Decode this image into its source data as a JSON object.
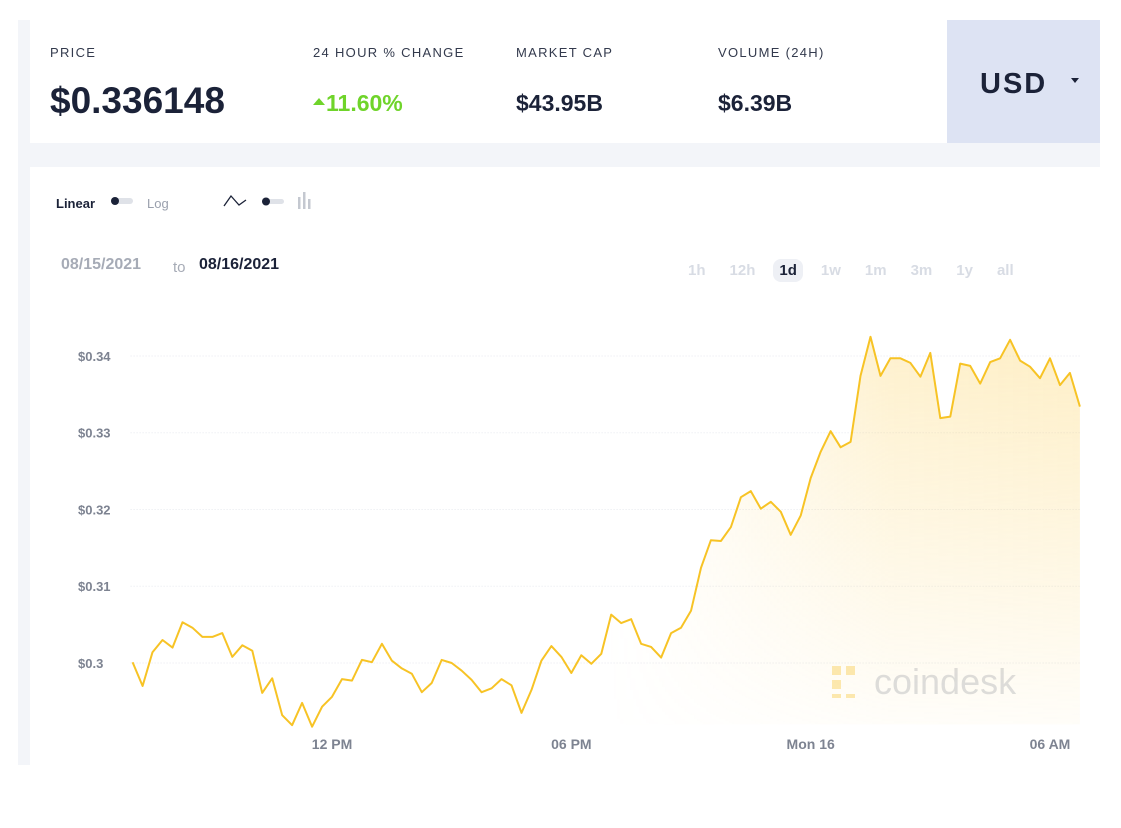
{
  "header": {
    "stats": [
      {
        "label": "PRICE",
        "value": "$0.336148"
      },
      {
        "label": "24 HOUR % CHANGE",
        "value": "11.60%"
      },
      {
        "label": "MARKET CAP",
        "value": "$43.95B"
      },
      {
        "label": "VOLUME (24H)",
        "value": "$6.39B"
      }
    ],
    "currency": "USD"
  },
  "controls": {
    "scale": [
      "Linear",
      "Log"
    ]
  },
  "range": {
    "from": "08/15/2021",
    "to_word": "to",
    "to": "08/16/2021",
    "buttons": [
      "1h",
      "12h",
      "1d",
      "1w",
      "1m",
      "3m",
      "1y",
      "all"
    ],
    "selected": 2
  },
  "watermark": "coindesk",
  "chart_data": {
    "type": "line",
    "color": "#f7c325",
    "x": [
      7,
      7.25,
      7.5,
      7.75,
      8,
      8.25,
      8.5,
      8.75,
      9,
      9.25,
      9.5,
      9.75,
      10,
      10.25,
      10.5,
      10.75,
      11,
      11.25,
      11.5,
      11.75,
      12,
      12.25,
      12.5,
      12.75,
      13,
      13.25,
      13.5,
      13.75,
      14,
      14.25,
      14.5,
      14.75,
      15,
      15.25,
      15.5,
      15.75,
      16,
      16.25,
      16.5,
      16.75,
      17,
      17.25,
      17.5,
      17.75,
      18,
      18.25,
      18.5,
      18.75,
      19,
      19.25,
      19.5,
      19.75,
      20,
      20.25,
      20.5,
      20.75,
      21,
      21.25,
      21.5,
      21.75,
      22,
      22.25,
      22.5,
      22.75,
      23,
      23.25,
      23.5,
      23.75,
      24,
      24.25,
      24.5,
      24.75,
      25,
      25.25,
      25.5,
      25.75,
      26,
      26.25,
      26.5,
      26.75,
      27,
      27.25,
      27.5,
      27.75,
      28,
      28.25,
      28.5,
      28.75,
      29,
      29.25,
      29.5,
      29.75,
      30,
      30.25,
      30.5,
      30.75
    ],
    "values": [
      0.3001,
      0.297,
      0.3014,
      0.303,
      0.302,
      0.3053,
      0.3046,
      0.3034,
      0.3034,
      0.3039,
      0.3008,
      0.3023,
      0.3016,
      0.2961,
      0.298,
      0.2932,
      0.2919,
      0.2948,
      0.2917,
      0.2943,
      0.2956,
      0.2979,
      0.2977,
      0.3004,
      0.3001,
      0.3025,
      0.3003,
      0.2993,
      0.2986,
      0.2962,
      0.2974,
      0.3004,
      0.3,
      0.299,
      0.2978,
      0.2962,
      0.2967,
      0.2979,
      0.2971,
      0.2935,
      0.2965,
      0.3003,
      0.3022,
      0.3008,
      0.2987,
      0.301,
      0.2999,
      0.3012,
      0.3063,
      0.3052,
      0.3057,
      0.3025,
      0.3021,
      0.3007,
      0.3039,
      0.3046,
      0.3068,
      0.3124,
      0.316,
      0.3159,
      0.3177,
      0.3216,
      0.3224,
      0.3201,
      0.321,
      0.3197,
      0.3167,
      0.3192,
      0.3241,
      0.3275,
      0.3302,
      0.3281,
      0.3288,
      0.3374,
      0.3425,
      0.3374,
      0.3397,
      0.3397,
      0.3391,
      0.3373,
      0.3404,
      0.3319,
      0.3321,
      0.339,
      0.3387,
      0.3364,
      0.3392,
      0.3397,
      0.3421,
      0.3394,
      0.3386,
      0.3371,
      0.3397,
      0.3362,
      0.3378,
      0.3334
    ],
    "xlim": [
      6.95,
      30.75
    ],
    "xticks": [
      {
        "value": 12,
        "label": "12 PM"
      },
      {
        "value": 18,
        "label": "06 PM"
      },
      {
        "value": 24,
        "label": "Mon 16"
      },
      {
        "value": 30,
        "label": "06 AM"
      }
    ],
    "ylim": [
      0.292,
      0.3435
    ],
    "yticks": [
      {
        "value": 0.3,
        "label": "$0.3"
      },
      {
        "value": 0.31,
        "label": "$0.31"
      },
      {
        "value": 0.32,
        "label": "$0.32"
      },
      {
        "value": 0.33,
        "label": "$0.33"
      },
      {
        "value": 0.34,
        "label": "$0.34"
      }
    ],
    "grid": true
  }
}
